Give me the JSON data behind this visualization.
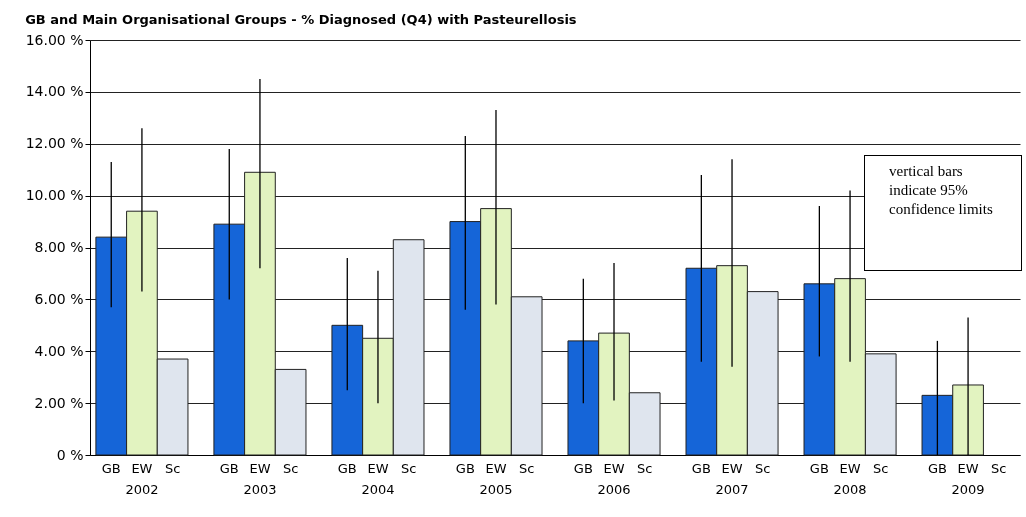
{
  "chart_data": {
    "type": "bar",
    "title": "GB and Main Organisational Groups -  % Diagnosed (Q4) with Pasteurellosis",
    "categories": [
      "2002",
      "2003",
      "2004",
      "2005",
      "2006",
      "2007",
      "2008",
      "2009"
    ],
    "series": [
      {
        "name": "GB",
        "color": "#1565d8",
        "values": [
          8.4,
          8.9,
          5.0,
          9.0,
          4.4,
          7.2,
          6.6,
          2.3
        ],
        "errors": [
          [
            5.7,
            11.3
          ],
          [
            6.0,
            11.8
          ],
          [
            2.5,
            7.6
          ],
          [
            5.6,
            12.3
          ],
          [
            2.0,
            6.8
          ],
          [
            3.6,
            10.8
          ],
          [
            3.8,
            9.6
          ],
          [
            0,
            4.4
          ]
        ]
      },
      {
        "name": "EW",
        "color": "#e2f3c0",
        "values": [
          9.4,
          10.9,
          4.5,
          9.5,
          4.7,
          7.3,
          6.8,
          2.7
        ],
        "errors": [
          [
            6.3,
            12.6
          ],
          [
            7.2,
            14.5
          ],
          [
            2.0,
            7.1
          ],
          [
            5.8,
            13.3
          ],
          [
            2.1,
            7.4
          ],
          [
            3.4,
            11.4
          ],
          [
            3.6,
            10.2
          ],
          [
            0,
            5.3
          ]
        ]
      },
      {
        "name": "Sc",
        "color": "#dfe5ee",
        "values": [
          3.7,
          3.3,
          8.3,
          6.1,
          2.4,
          6.3,
          3.9,
          null
        ]
      }
    ],
    "ylim": [
      0,
      16
    ],
    "yticks": [
      {
        "value": 0,
        "label": "0 %"
      },
      {
        "value": 2,
        "label": "2.00 %"
      },
      {
        "value": 4,
        "label": "4.00 %"
      },
      {
        "value": 6,
        "label": "6.00 %"
      },
      {
        "value": 8,
        "label": "8.00 %"
      },
      {
        "value": 10,
        "label": "10.00 %"
      },
      {
        "value": 12,
        "label": "12.00 %"
      },
      {
        "value": 14,
        "label": "14.00 %"
      },
      {
        "value": 16,
        "label": "16.00 %"
      }
    ],
    "grid": "y",
    "legend": false,
    "annotations": [
      "vertical bars indicate 95% confidence limits"
    ]
  }
}
